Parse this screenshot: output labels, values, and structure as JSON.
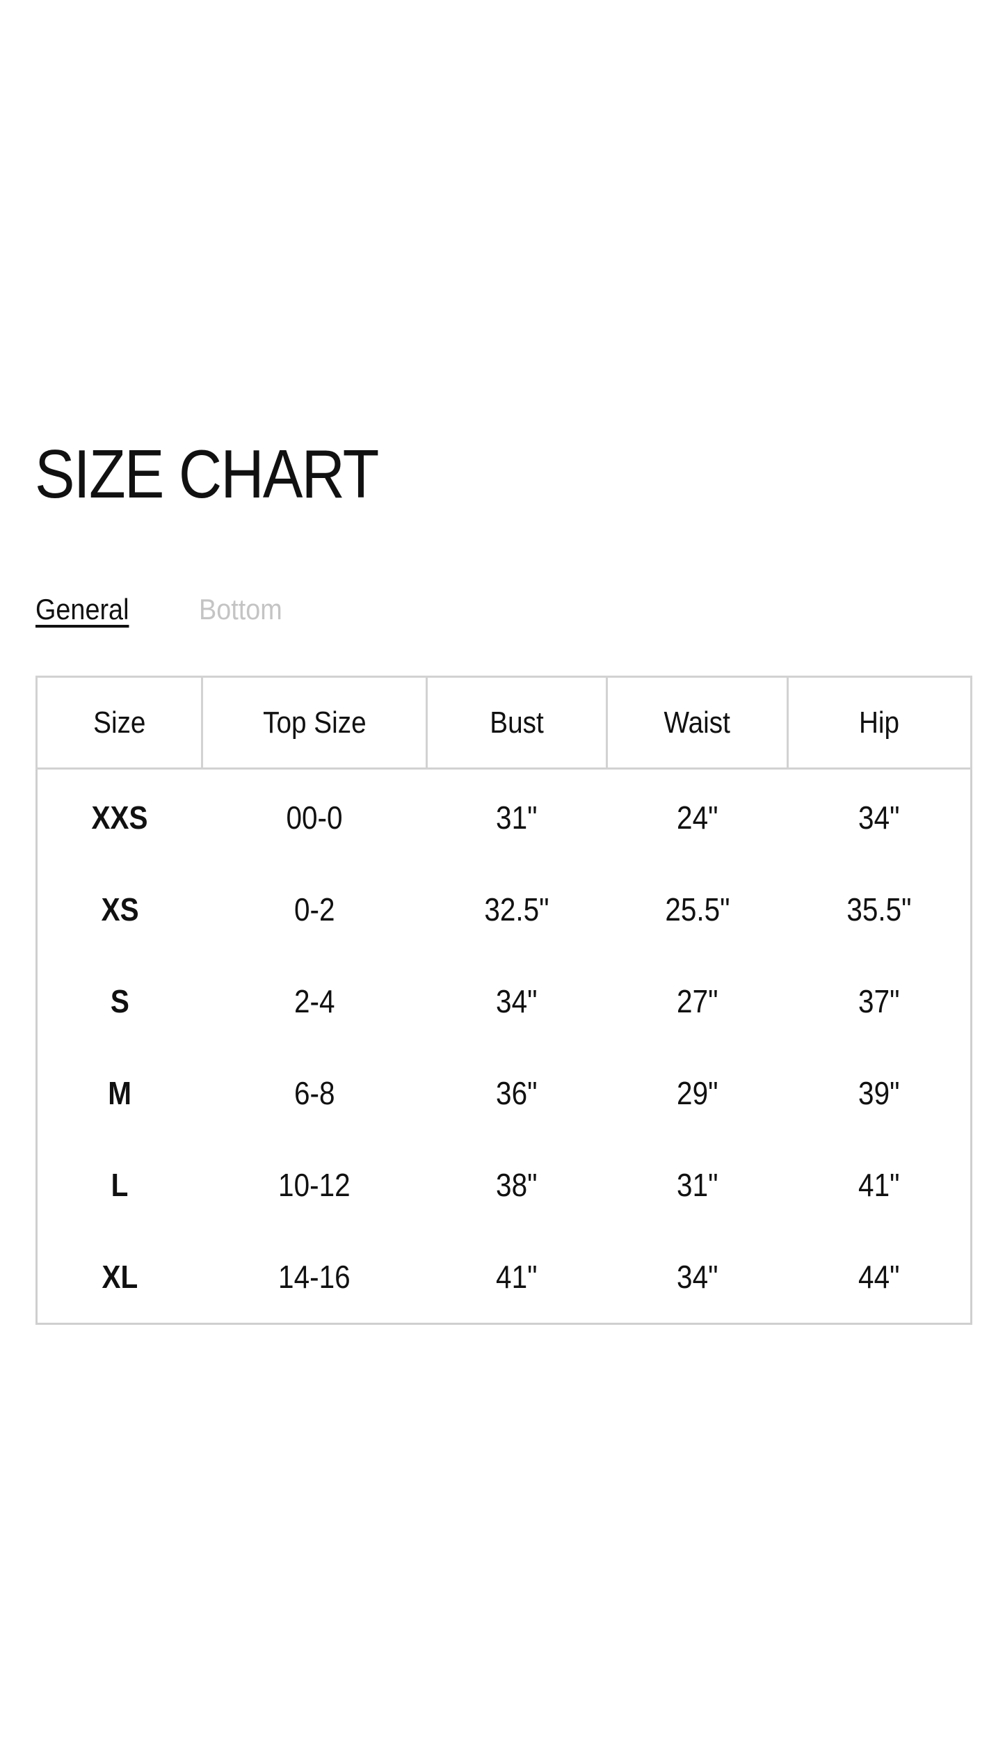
{
  "title": "SIZE CHART",
  "tabs": [
    {
      "label": "General",
      "active": true
    },
    {
      "label": "Bottom",
      "active": false
    }
  ],
  "table": {
    "headers": [
      "Size",
      "Top Size",
      "Bust",
      "Waist",
      "Hip"
    ],
    "rows": [
      [
        "XXS",
        "00-0",
        "31\"",
        "24\"",
        "34\""
      ],
      [
        "XS",
        "0-2",
        "32.5\"",
        "25.5\"",
        "35.5\""
      ],
      [
        "S",
        "2-4",
        "34\"",
        "27\"",
        "37\""
      ],
      [
        "M",
        "6-8",
        "36\"",
        "29\"",
        "39\""
      ],
      [
        "L",
        "10-12",
        "38\"",
        "31\"",
        "41\""
      ],
      [
        "XL",
        "14-16",
        "41\"",
        "34\"",
        "44\""
      ]
    ]
  }
}
